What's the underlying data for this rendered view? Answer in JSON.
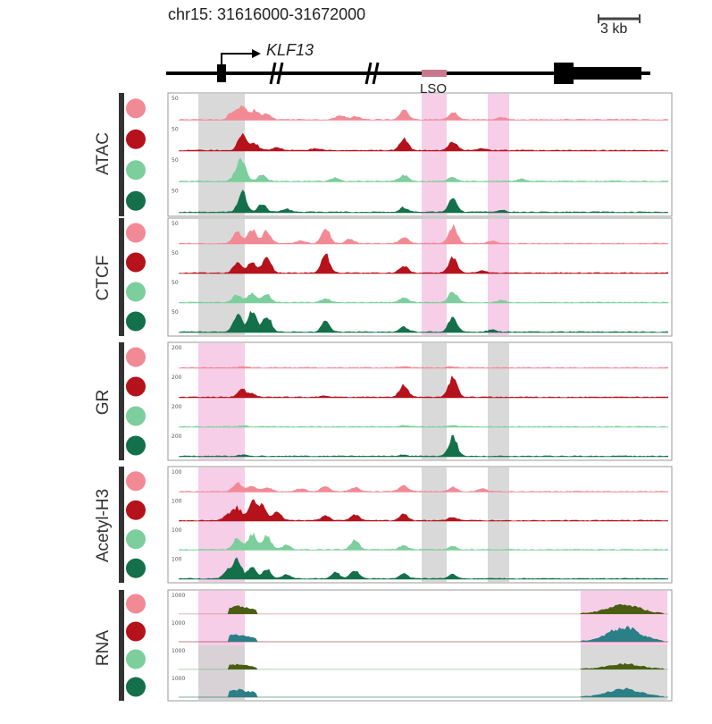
{
  "region": "chr15: 31616000-31672000",
  "scale_bar": "3 kb",
  "gene": "KLF13",
  "element": "LSO",
  "colors": {
    "ctrl_a": "#f28a96",
    "treat_a": "#b5121b",
    "ctrl_b": "#7ccf9c",
    "treat_b": "#14704a",
    "rna_top": "#4a5e12",
    "rna_bottom": "#2b7f86",
    "highlight_pink": "#f4c6e4",
    "highlight_gray": "#d2d2d2"
  },
  "legend_circles": [
    "ctrl_a",
    "treat_a",
    "ctrl_b",
    "treat_b"
  ],
  "panels": [
    {
      "name": "ATAC",
      "scales": [
        "50",
        "50",
        "50",
        "50"
      ],
      "highlights": [
        "gray",
        "pink",
        "pink"
      ],
      "peaks": [
        [
          [
            0.11,
            0.35
          ],
          [
            0.13,
            0.55
          ],
          [
            0.155,
            0.4
          ],
          [
            0.18,
            0.25
          ],
          [
            0.33,
            0.18
          ],
          [
            0.36,
            0.15
          ],
          [
            0.46,
            0.45
          ],
          [
            0.56,
            0.35
          ],
          [
            0.66,
            0.1
          ]
        ],
        [
          [
            0.13,
            0.8
          ],
          [
            0.155,
            0.3
          ],
          [
            0.2,
            0.15
          ],
          [
            0.28,
            0.1
          ],
          [
            0.46,
            0.55
          ],
          [
            0.56,
            0.4
          ],
          [
            0.62,
            0.08
          ]
        ],
        [
          [
            0.12,
            0.45
          ],
          [
            0.13,
            0.7
          ],
          [
            0.17,
            0.3
          ],
          [
            0.32,
            0.15
          ],
          [
            0.46,
            0.3
          ],
          [
            0.56,
            0.18
          ],
          [
            0.7,
            0.1
          ]
        ],
        [
          [
            0.13,
            0.9
          ],
          [
            0.17,
            0.35
          ],
          [
            0.22,
            0.15
          ],
          [
            0.46,
            0.2
          ],
          [
            0.56,
            0.65
          ],
          [
            0.66,
            0.08
          ]
        ]
      ]
    },
    {
      "name": "CTCF",
      "scales": [
        "50",
        "50",
        "50",
        "50"
      ],
      "highlights": [
        "gray",
        "pink",
        "pink"
      ],
      "peaks": [
        [
          [
            0.12,
            0.55
          ],
          [
            0.15,
            0.65
          ],
          [
            0.18,
            0.6
          ],
          [
            0.25,
            0.15
          ],
          [
            0.3,
            0.7
          ],
          [
            0.35,
            0.2
          ],
          [
            0.46,
            0.3
          ],
          [
            0.56,
            0.85
          ],
          [
            0.64,
            0.12
          ]
        ],
        [
          [
            0.12,
            0.5
          ],
          [
            0.15,
            0.55
          ],
          [
            0.18,
            0.75
          ],
          [
            0.3,
            0.9
          ],
          [
            0.46,
            0.35
          ],
          [
            0.56,
            0.8
          ],
          [
            0.62,
            0.1
          ]
        ],
        [
          [
            0.12,
            0.4
          ],
          [
            0.15,
            0.45
          ],
          [
            0.18,
            0.4
          ],
          [
            0.3,
            0.2
          ],
          [
            0.46,
            0.22
          ],
          [
            0.56,
            0.5
          ],
          [
            0.66,
            0.1
          ]
        ],
        [
          [
            0.12,
            0.85
          ],
          [
            0.15,
            0.95
          ],
          [
            0.18,
            0.8
          ],
          [
            0.3,
            0.5
          ],
          [
            0.46,
            0.25
          ],
          [
            0.56,
            0.7
          ],
          [
            0.64,
            0.1
          ]
        ]
      ]
    },
    {
      "name": "GR",
      "scales": [
        "200",
        "200",
        "200",
        "200"
      ],
      "highlights": [
        "pink",
        "gray",
        "gray"
      ],
      "peaks": [
        [
          [
            0.13,
            0.05
          ],
          [
            0.46,
            0.05
          ],
          [
            0.56,
            0.05
          ]
        ],
        [
          [
            0.13,
            0.35
          ],
          [
            0.15,
            0.15
          ],
          [
            0.46,
            0.6
          ],
          [
            0.56,
            0.95
          ],
          [
            0.3,
            0.06
          ]
        ],
        [
          [
            0.13,
            0.04
          ],
          [
            0.46,
            0.04
          ],
          [
            0.56,
            0.04
          ]
        ],
        [
          [
            0.13,
            0.06
          ],
          [
            0.46,
            0.06
          ],
          [
            0.56,
            0.95
          ]
        ]
      ]
    },
    {
      "name": "Acetyl-H3",
      "scales": [
        "100",
        "100",
        "100",
        "100"
      ],
      "highlights": [
        "pink",
        "gray",
        "gray"
      ],
      "peaks": [
        [
          [
            0.12,
            0.45
          ],
          [
            0.15,
            0.25
          ],
          [
            0.18,
            0.2
          ],
          [
            0.25,
            0.15
          ],
          [
            0.3,
            0.25
          ],
          [
            0.36,
            0.2
          ],
          [
            0.46,
            0.3
          ],
          [
            0.56,
            0.2
          ],
          [
            0.62,
            0.12
          ]
        ],
        [
          [
            0.1,
            0.3
          ],
          [
            0.12,
            0.6
          ],
          [
            0.15,
            0.9
          ],
          [
            0.17,
            0.7
          ],
          [
            0.2,
            0.45
          ],
          [
            0.3,
            0.25
          ],
          [
            0.36,
            0.3
          ],
          [
            0.46,
            0.3
          ],
          [
            0.56,
            0.15
          ]
        ],
        [
          [
            0.12,
            0.55
          ],
          [
            0.15,
            0.8
          ],
          [
            0.18,
            0.7
          ],
          [
            0.22,
            0.2
          ],
          [
            0.36,
            0.45
          ],
          [
            0.46,
            0.2
          ],
          [
            0.56,
            0.15
          ]
        ],
        [
          [
            0.1,
            0.4
          ],
          [
            0.12,
            0.9
          ],
          [
            0.15,
            0.5
          ],
          [
            0.18,
            0.45
          ],
          [
            0.22,
            0.2
          ],
          [
            0.32,
            0.3
          ],
          [
            0.36,
            0.4
          ],
          [
            0.46,
            0.25
          ],
          [
            0.56,
            0.2
          ]
        ]
      ]
    },
    {
      "name": "RNA",
      "scales": [
        "1000",
        "1000",
        "1000",
        "1000"
      ],
      "highlights": [
        "pink",
        "none",
        "none"
      ],
      "rna": true,
      "peaks": [
        [
          [
            0.12,
            0.35
          ],
          [
            0.91,
            0.45
          ]
        ],
        [
          [
            0.12,
            0.3
          ],
          [
            0.91,
            0.7
          ]
        ],
        [
          [
            0.12,
            0.2
          ],
          [
            0.91,
            0.25
          ]
        ],
        [
          [
            0.12,
            0.35
          ],
          [
            0.91,
            0.4
          ]
        ]
      ]
    }
  ]
}
